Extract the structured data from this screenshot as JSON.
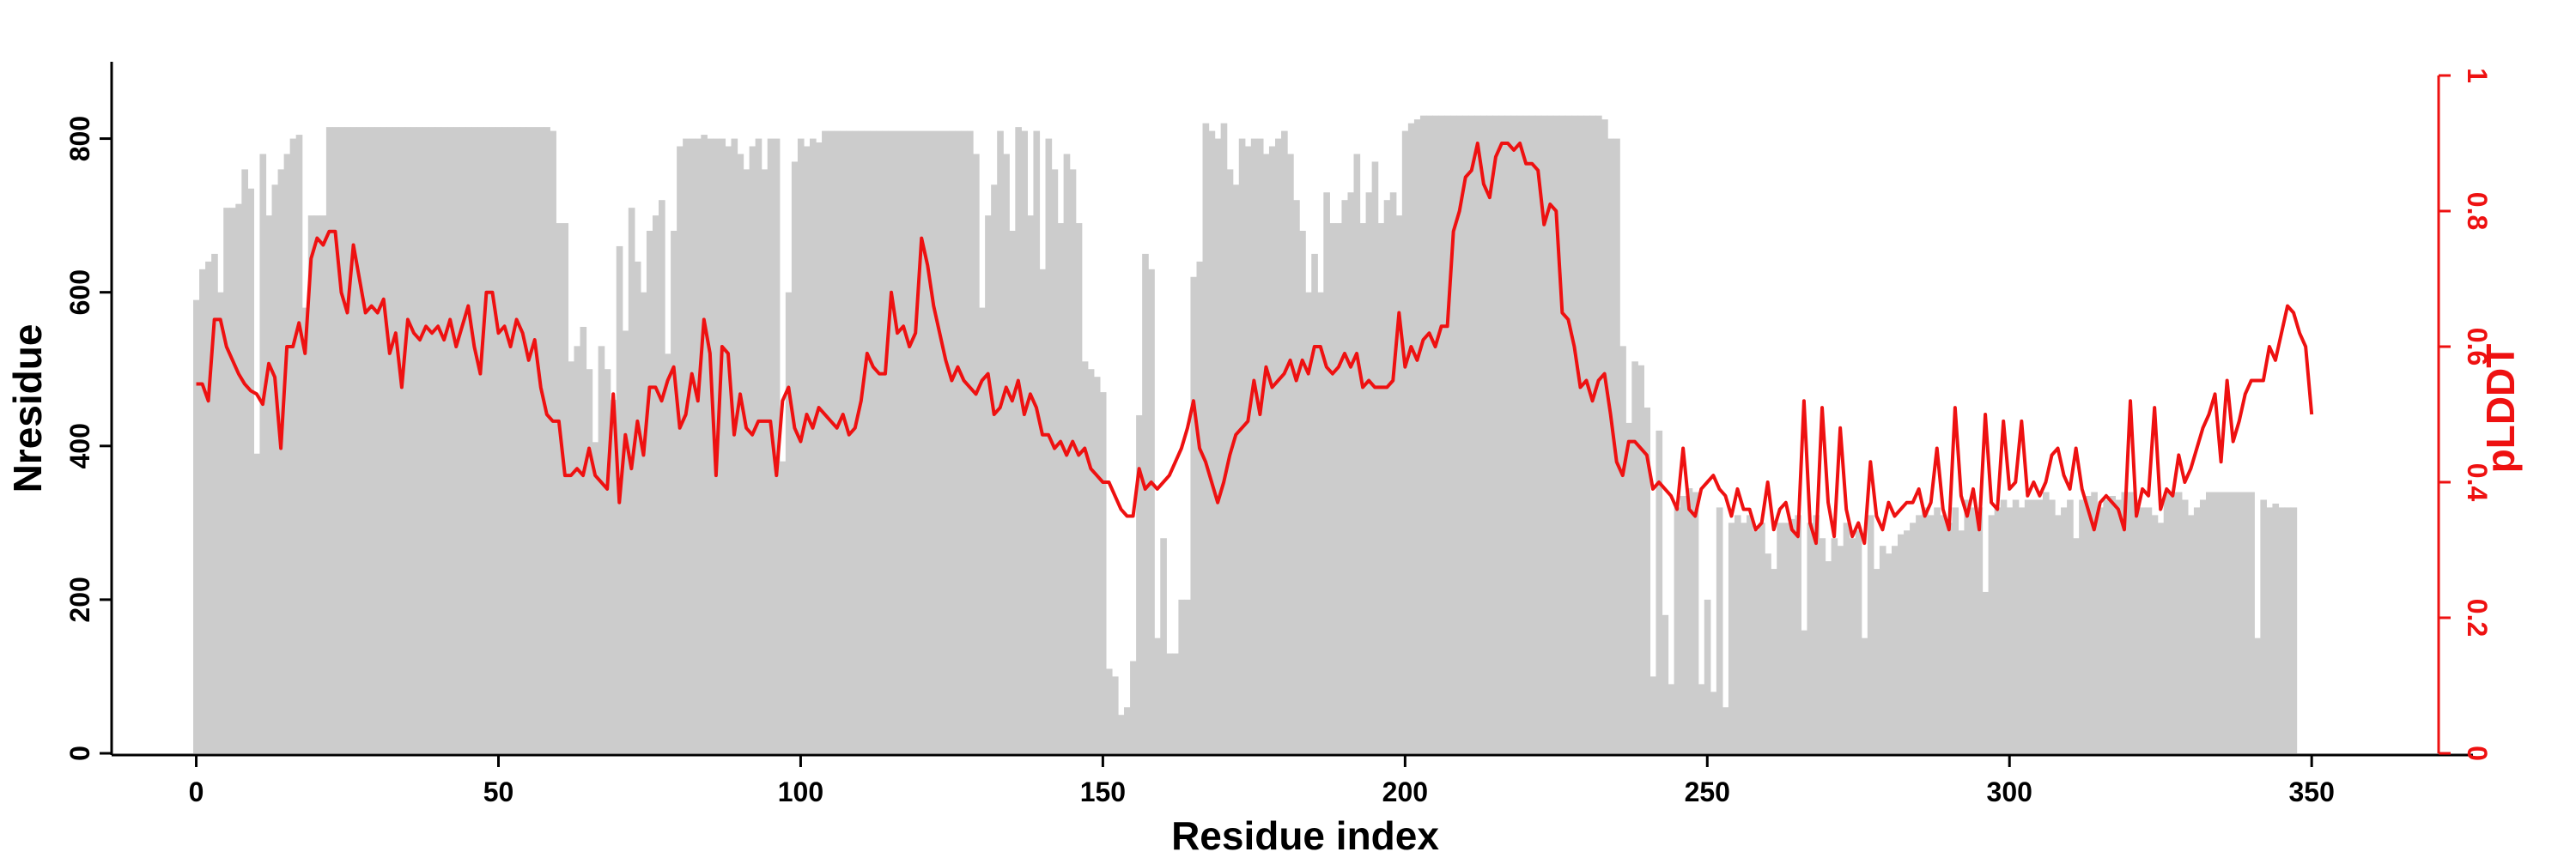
{
  "chart_data": {
    "type": "bar",
    "title": "",
    "xlabel": "Residue index",
    "ylabel": "Nresidue",
    "y2label": "pLDDT",
    "xlim": [
      -14,
      371
    ],
    "ylim": [
      0,
      900
    ],
    "y2lim": [
      0,
      1
    ],
    "xticks": [
      0,
      50,
      100,
      150,
      200,
      250,
      300,
      350
    ],
    "yticks": [
      0,
      200,
      400,
      600,
      800
    ],
    "y2ticks": [
      0,
      0.2,
      0.4,
      0.6,
      0.8,
      1
    ],
    "xtick_labels": [
      "0",
      "50",
      "100",
      "150",
      "200",
      "250",
      "300",
      "350"
    ],
    "ytick_labels": [
      "0",
      "200",
      "400",
      "600",
      "800"
    ],
    "y2tick_labels": [
      "0",
      "0.2",
      "0.4",
      "0.6",
      "0.8",
      "1"
    ],
    "grid": false,
    "legend": "none",
    "colors": {
      "bars": "#cccccc",
      "line": "#ee1111",
      "axis": "#000000"
    },
    "series": [
      {
        "kind": "bar",
        "axis": "left",
        "x_start": 0,
        "x_step": 1,
        "values": [
          590,
          630,
          640,
          650,
          600,
          710,
          710,
          715,
          760,
          735,
          390,
          780,
          700,
          740,
          760,
          780,
          800,
          805,
          580,
          700,
          700,
          700,
          815,
          815,
          815,
          815,
          815,
          815,
          815,
          815,
          815,
          815,
          815,
          815,
          815,
          815,
          815,
          815,
          815,
          815,
          815,
          815,
          815,
          815,
          815,
          815,
          815,
          815,
          815,
          815,
          815,
          815,
          815,
          815,
          815,
          815,
          815,
          815,
          815,
          810,
          690,
          690,
          510,
          530,
          555,
          500,
          405,
          530,
          500,
          460,
          660,
          550,
          710,
          640,
          600,
          680,
          700,
          720,
          520,
          680,
          790,
          800,
          800,
          800,
          805,
          800,
          800,
          800,
          790,
          800,
          780,
          760,
          790,
          800,
          760,
          800,
          800,
          380,
          600,
          770,
          800,
          790,
          800,
          795,
          810,
          810,
          810,
          810,
          810,
          810,
          810,
          810,
          810,
          810,
          810,
          810,
          810,
          810,
          810,
          810,
          810,
          810,
          810,
          810,
          810,
          810,
          810,
          810,
          810,
          780,
          580,
          700,
          740,
          810,
          780,
          680,
          815,
          810,
          700,
          810,
          630,
          800,
          760,
          690,
          780,
          760,
          690,
          510,
          500,
          490,
          470,
          110,
          100,
          50,
          60,
          120,
          440,
          650,
          630,
          150,
          280,
          130,
          130,
          200,
          200,
          620,
          640,
          820,
          810,
          800,
          820,
          760,
          740,
          800,
          790,
          800,
          800,
          780,
          790,
          800,
          810,
          780,
          720,
          680,
          600,
          650,
          600,
          730,
          690,
          690,
          720,
          730,
          780,
          690,
          730,
          770,
          690,
          720,
          730,
          700,
          810,
          820,
          825,
          830,
          830,
          830,
          830,
          830,
          830,
          830,
          830,
          830,
          830,
          830,
          830,
          830,
          830,
          830,
          830,
          830,
          830,
          830,
          830,
          830,
          830,
          830,
          830,
          830,
          830,
          830,
          830,
          830,
          830,
          825,
          800,
          800,
          530,
          430,
          510,
          505,
          450,
          100,
          420,
          180,
          90,
          320,
          335,
          345,
          340,
          90,
          200,
          80,
          320,
          60,
          300,
          310,
          300,
          310,
          290,
          300,
          260,
          240,
          300,
          300,
          305,
          310,
          160,
          300,
          310,
          280,
          250,
          280,
          270,
          300,
          280,
          290,
          150,
          310,
          240,
          270,
          260,
          270,
          285,
          290,
          300,
          310,
          320,
          310,
          320,
          310,
          300,
          320,
          290,
          330,
          320,
          320,
          210,
          310,
          320,
          330,
          320,
          330,
          320,
          330,
          330,
          330,
          340,
          330,
          310,
          320,
          330,
          280,
          330,
          335,
          340,
          320,
          330,
          335,
          330,
          340,
          340,
          330,
          320,
          320,
          310,
          300,
          340,
          340,
          340,
          330,
          310,
          320,
          330,
          340,
          340,
          340,
          340,
          340,
          340,
          340,
          340,
          150,
          330,
          320,
          325,
          320,
          320,
          320
        ]
      },
      {
        "kind": "line",
        "axis": "right",
        "x_start": 0,
        "x_step": 1,
        "values": [
          0.545,
          0.545,
          0.52,
          0.64,
          0.64,
          0.6,
          0.58,
          0.56,
          0.545,
          0.535,
          0.53,
          0.515,
          0.575,
          0.555,
          0.45,
          0.6,
          0.6,
          0.635,
          0.59,
          0.73,
          0.76,
          0.75,
          0.77,
          0.77,
          0.68,
          0.65,
          0.75,
          0.7,
          0.65,
          0.66,
          0.65,
          0.67,
          0.59,
          0.62,
          0.54,
          0.64,
          0.62,
          0.61,
          0.63,
          0.62,
          0.63,
          0.61,
          0.64,
          0.6,
          0.63,
          0.66,
          0.6,
          0.56,
          0.68,
          0.68,
          0.62,
          0.63,
          0.6,
          0.64,
          0.62,
          0.58,
          0.61,
          0.54,
          0.5,
          0.49,
          0.49,
          0.41,
          0.41,
          0.42,
          0.41,
          0.45,
          0.41,
          0.4,
          0.39,
          0.53,
          0.37,
          0.47,
          0.42,
          0.49,
          0.44,
          0.54,
          0.54,
          0.52,
          0.55,
          0.57,
          0.48,
          0.5,
          0.56,
          0.52,
          0.64,
          0.59,
          0.41,
          0.6,
          0.59,
          0.47,
          0.53,
          0.48,
          0.47,
          0.49,
          0.49,
          0.49,
          0.41,
          0.52,
          0.54,
          0.48,
          0.46,
          0.5,
          0.48,
          0.51,
          0.5,
          0.49,
          0.48,
          0.5,
          0.47,
          0.48,
          0.52,
          0.59,
          0.57,
          0.56,
          0.56,
          0.68,
          0.62,
          0.63,
          0.6,
          0.62,
          0.76,
          0.72,
          0.66,
          0.62,
          0.58,
          0.55,
          0.57,
          0.55,
          0.54,
          0.53,
          0.55,
          0.56,
          0.5,
          0.51,
          0.54,
          0.52,
          0.55,
          0.5,
          0.53,
          0.51,
          0.47,
          0.47,
          0.45,
          0.46,
          0.44,
          0.46,
          0.44,
          0.45,
          0.42,
          0.41,
          0.4,
          0.4,
          0.38,
          0.36,
          0.35,
          0.35,
          0.42,
          0.39,
          0.4,
          0.39,
          0.4,
          0.41,
          0.43,
          0.45,
          0.48,
          0.52,
          0.45,
          0.43,
          0.4,
          0.37,
          0.4,
          0.44,
          0.47,
          0.48,
          0.49,
          0.55,
          0.5,
          0.57,
          0.54,
          0.55,
          0.56,
          0.58,
          0.55,
          0.58,
          0.56,
          0.6,
          0.6,
          0.57,
          0.56,
          0.57,
          0.59,
          0.57,
          0.59,
          0.54,
          0.55,
          0.54,
          0.54,
          0.54,
          0.55,
          0.65,
          0.57,
          0.6,
          0.58,
          0.61,
          0.62,
          0.6,
          0.63,
          0.63,
          0.77,
          0.8,
          0.85,
          0.86,
          0.9,
          0.84,
          0.82,
          0.88,
          0.9,
          0.9,
          0.89,
          0.9,
          0.87,
          0.87,
          0.86,
          0.78,
          0.81,
          0.8,
          0.65,
          0.64,
          0.6,
          0.54,
          0.55,
          0.52,
          0.55,
          0.56,
          0.5,
          0.43,
          0.41,
          0.46,
          0.46,
          0.45,
          0.44,
          0.39,
          0.4,
          0.39,
          0.38,
          0.36,
          0.45,
          0.36,
          0.35,
          0.39,
          0.4,
          0.41,
          0.39,
          0.38,
          0.35,
          0.39,
          0.36,
          0.36,
          0.33,
          0.34,
          0.4,
          0.33,
          0.36,
          0.37,
          0.33,
          0.32,
          0.52,
          0.34,
          0.31,
          0.51,
          0.37,
          0.32,
          0.48,
          0.36,
          0.32,
          0.34,
          0.31,
          0.43,
          0.35,
          0.33,
          0.37,
          0.35,
          0.36,
          0.37,
          0.37,
          0.39,
          0.35,
          0.37,
          0.45,
          0.36,
          0.33,
          0.51,
          0.38,
          0.35,
          0.39,
          0.33,
          0.5,
          0.37,
          0.36,
          0.49,
          0.39,
          0.4,
          0.49,
          0.38,
          0.4,
          0.38,
          0.4,
          0.44,
          0.45,
          0.41,
          0.39,
          0.45,
          0.39,
          0.36,
          0.33,
          0.37,
          0.38,
          0.37,
          0.36,
          0.33,
          0.52,
          0.35,
          0.39,
          0.38,
          0.51,
          0.36,
          0.39,
          0.38,
          0.44,
          0.4,
          0.42,
          0.45,
          0.48,
          0.5,
          0.53,
          0.43,
          0.55,
          0.46,
          0.49,
          0.53,
          0.55,
          0.55,
          0.55,
          0.6,
          0.58,
          0.62,
          0.66,
          0.65,
          0.62,
          0.6,
          0.5
        ]
      }
    ]
  }
}
